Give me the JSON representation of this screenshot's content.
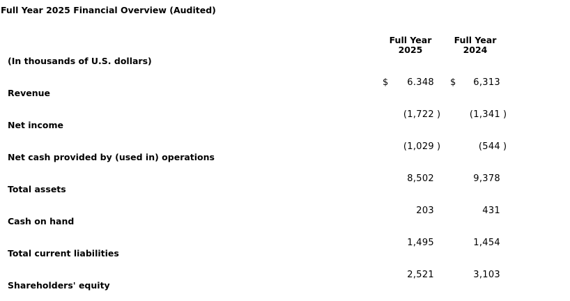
{
  "page_title": "Full Year 2025 Financial Overview (Audited)",
  "table": {
    "unit_note": "(In thousands of U.S. dollars)",
    "columns": [
      {
        "line1": "Full Year",
        "line2": "2025"
      },
      {
        "line1": "Full Year",
        "line2": "2024"
      }
    ],
    "rows": [
      {
        "label": "Revenue",
        "cur2025": "$",
        "val2025": "6.348",
        "paren2025": "",
        "cur2024": "$",
        "val2024": "6,313",
        "paren2024": ""
      },
      {
        "label": "Net income",
        "cur2025": "",
        "val2025": "(1,722",
        "paren2025": ")",
        "cur2024": "",
        "val2024": "(1,341",
        "paren2024": ")"
      },
      {
        "label": "Net cash provided by (used in) operations",
        "cur2025": "",
        "val2025": "(1,029",
        "paren2025": ")",
        "cur2024": "",
        "val2024": "(544",
        "paren2024": ")"
      },
      {
        "label": "Total assets",
        "cur2025": "",
        "val2025": "8,502",
        "paren2025": "",
        "cur2024": "",
        "val2024": "9,378",
        "paren2024": ""
      },
      {
        "label": "Cash on hand",
        "cur2025": "",
        "val2025": "203",
        "paren2025": "",
        "cur2024": "",
        "val2024": "431",
        "paren2024": ""
      },
      {
        "label": "Total current liabilities",
        "cur2025": "",
        "val2025": "1,495",
        "paren2025": "",
        "cur2024": "",
        "val2024": "1,454",
        "paren2024": ""
      },
      {
        "label": "Shareholders' equity",
        "cur2025": "",
        "val2025": "2,521",
        "paren2025": "",
        "cur2024": "",
        "val2024": "3,103",
        "paren2024": ""
      }
    ]
  }
}
